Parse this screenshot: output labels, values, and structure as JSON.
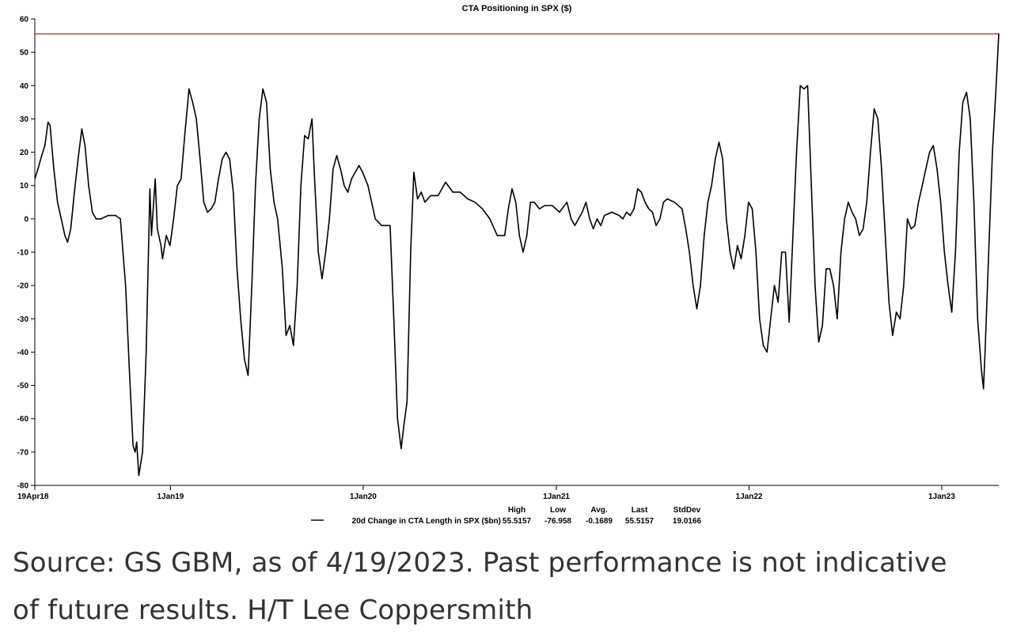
{
  "chart_data": {
    "type": "line",
    "title": "CTA Positioning in SPX ($)",
    "ylim": [
      -80,
      60
    ],
    "yticks": [
      60,
      50,
      40,
      30,
      20,
      10,
      0,
      -10,
      -20,
      -30,
      -40,
      -50,
      -60,
      -70,
      -80
    ],
    "xlim": [
      "2018-04-19",
      "2023-04-19"
    ],
    "xtick_labels": [
      {
        "date": "2018-04-19",
        "label": "19Apr18"
      },
      {
        "date": "2019-01-01",
        "label": "1Jan19"
      },
      {
        "date": "2020-01-01",
        "label": "1Jan20"
      },
      {
        "date": "2021-01-01",
        "label": "1Jan21"
      },
      {
        "date": "2022-01-01",
        "label": "1Jan22"
      },
      {
        "date": "2023-01-01",
        "label": "1Jan23"
      }
    ],
    "reference_line": {
      "value": 55.5157,
      "color": "#a0302a"
    },
    "series": [
      {
        "name": "20d Change in CTA Length in SPX ($bn)",
        "color": "#000000",
        "points": [
          [
            "2018-04-19",
            12
          ],
          [
            "2018-04-25",
            15
          ],
          [
            "2018-05-02",
            19
          ],
          [
            "2018-05-08",
            22
          ],
          [
            "2018-05-14",
            29
          ],
          [
            "2018-05-18",
            28
          ],
          [
            "2018-05-25",
            15
          ],
          [
            "2018-06-01",
            5
          ],
          [
            "2018-06-08",
            0
          ],
          [
            "2018-06-15",
            -5
          ],
          [
            "2018-06-20",
            -7
          ],
          [
            "2018-06-26",
            -3
          ],
          [
            "2018-07-03",
            8
          ],
          [
            "2018-07-10",
            18
          ],
          [
            "2018-07-17",
            27
          ],
          [
            "2018-07-23",
            22
          ],
          [
            "2018-07-30",
            10
          ],
          [
            "2018-08-06",
            2
          ],
          [
            "2018-08-13",
            0
          ],
          [
            "2018-08-22",
            0
          ],
          [
            "2018-09-05",
            1
          ],
          [
            "2018-09-19",
            1
          ],
          [
            "2018-09-28",
            0
          ],
          [
            "2018-10-08",
            -20
          ],
          [
            "2018-10-15",
            -45
          ],
          [
            "2018-10-22",
            -68
          ],
          [
            "2018-10-26",
            -70
          ],
          [
            "2018-10-29",
            -67
          ],
          [
            "2018-11-02",
            -77
          ],
          [
            "2018-11-09",
            -70
          ],
          [
            "2018-11-16",
            -40
          ],
          [
            "2018-11-23",
            9
          ],
          [
            "2018-11-26",
            -5
          ],
          [
            "2018-12-03",
            12
          ],
          [
            "2018-12-07",
            -3
          ],
          [
            "2018-12-14",
            -8
          ],
          [
            "2018-12-17",
            -12
          ],
          [
            "2018-12-24",
            -5
          ],
          [
            "2018-12-31",
            -8
          ],
          [
            "2019-01-07",
            0
          ],
          [
            "2019-01-14",
            10
          ],
          [
            "2019-01-21",
            12
          ],
          [
            "2019-01-28",
            25
          ],
          [
            "2019-02-05",
            39
          ],
          [
            "2019-02-12",
            35
          ],
          [
            "2019-02-19",
            30
          ],
          [
            "2019-02-26",
            18
          ],
          [
            "2019-03-05",
            5
          ],
          [
            "2019-03-12",
            2
          ],
          [
            "2019-03-19",
            3
          ],
          [
            "2019-03-26",
            5
          ],
          [
            "2019-04-02",
            12
          ],
          [
            "2019-04-09",
            18
          ],
          [
            "2019-04-16",
            20
          ],
          [
            "2019-04-23",
            18
          ],
          [
            "2019-04-30",
            8
          ],
          [
            "2019-05-07",
            -15
          ],
          [
            "2019-05-14",
            -30
          ],
          [
            "2019-05-21",
            -42
          ],
          [
            "2019-05-28",
            -47
          ],
          [
            "2019-06-04",
            -20
          ],
          [
            "2019-06-11",
            10
          ],
          [
            "2019-06-18",
            30
          ],
          [
            "2019-06-25",
            39
          ],
          [
            "2019-07-02",
            35
          ],
          [
            "2019-07-09",
            15
          ],
          [
            "2019-07-16",
            5
          ],
          [
            "2019-07-23",
            0
          ],
          [
            "2019-08-01",
            -15
          ],
          [
            "2019-08-08",
            -35
          ],
          [
            "2019-08-15",
            -32
          ],
          [
            "2019-08-22",
            -38
          ],
          [
            "2019-08-29",
            -20
          ],
          [
            "2019-09-05",
            10
          ],
          [
            "2019-09-12",
            25
          ],
          [
            "2019-09-19",
            24
          ],
          [
            "2019-09-26",
            30
          ],
          [
            "2019-10-01",
            12
          ],
          [
            "2019-10-08",
            -10
          ],
          [
            "2019-10-15",
            -18
          ],
          [
            "2019-10-22",
            -10
          ],
          [
            "2019-10-29",
            0
          ],
          [
            "2019-11-05",
            15
          ],
          [
            "2019-11-12",
            19
          ],
          [
            "2019-11-19",
            15
          ],
          [
            "2019-11-26",
            10
          ],
          [
            "2019-12-03",
            8
          ],
          [
            "2019-12-10",
            12
          ],
          [
            "2019-12-17",
            14
          ],
          [
            "2019-12-24",
            16
          ],
          [
            "2019-12-31",
            14
          ],
          [
            "2020-01-10",
            10
          ],
          [
            "2020-01-17",
            5
          ],
          [
            "2020-01-24",
            0
          ],
          [
            "2020-02-05",
            -2
          ],
          [
            "2020-02-14",
            -2
          ],
          [
            "2020-02-21",
            -2
          ],
          [
            "2020-02-28",
            -30
          ],
          [
            "2020-03-06",
            -60
          ],
          [
            "2020-03-13",
            -69
          ],
          [
            "2020-03-18",
            -62
          ],
          [
            "2020-03-24",
            -55
          ],
          [
            "2020-03-31",
            -10
          ],
          [
            "2020-04-06",
            14
          ],
          [
            "2020-04-13",
            6
          ],
          [
            "2020-04-20",
            8
          ],
          [
            "2020-04-27",
            5
          ],
          [
            "2020-05-08",
            7
          ],
          [
            "2020-05-22",
            7
          ],
          [
            "2020-06-05",
            11
          ],
          [
            "2020-06-19",
            8
          ],
          [
            "2020-07-03",
            8
          ],
          [
            "2020-07-17",
            6
          ],
          [
            "2020-07-31",
            5
          ],
          [
            "2020-08-14",
            3
          ],
          [
            "2020-08-28",
            0
          ],
          [
            "2020-09-11",
            -5
          ],
          [
            "2020-09-25",
            -5
          ],
          [
            "2020-10-02",
            3
          ],
          [
            "2020-10-09",
            9
          ],
          [
            "2020-10-16",
            5
          ],
          [
            "2020-10-23",
            -5
          ],
          [
            "2020-10-30",
            -10
          ],
          [
            "2020-11-06",
            -5
          ],
          [
            "2020-11-13",
            5
          ],
          [
            "2020-11-20",
            5
          ],
          [
            "2020-11-30",
            3
          ],
          [
            "2020-12-10",
            4
          ],
          [
            "2020-12-24",
            4
          ],
          [
            "2021-01-07",
            2
          ],
          [
            "2021-01-21",
            5
          ],
          [
            "2021-01-29",
            0
          ],
          [
            "2021-02-05",
            -2
          ],
          [
            "2021-02-12",
            0
          ],
          [
            "2021-02-19",
            2
          ],
          [
            "2021-02-26",
            5
          ],
          [
            "2021-03-05",
            0
          ],
          [
            "2021-03-12",
            -3
          ],
          [
            "2021-03-19",
            0
          ],
          [
            "2021-03-26",
            -2
          ],
          [
            "2021-04-02",
            1
          ],
          [
            "2021-04-16",
            2
          ],
          [
            "2021-04-30",
            1
          ],
          [
            "2021-05-07",
            0
          ],
          [
            "2021-05-14",
            2
          ],
          [
            "2021-05-21",
            1
          ],
          [
            "2021-05-28",
            3
          ],
          [
            "2021-06-04",
            9
          ],
          [
            "2021-06-11",
            8
          ],
          [
            "2021-06-18",
            5
          ],
          [
            "2021-06-25",
            3
          ],
          [
            "2021-07-02",
            2
          ],
          [
            "2021-07-09",
            -2
          ],
          [
            "2021-07-16",
            0
          ],
          [
            "2021-07-23",
            5
          ],
          [
            "2021-07-30",
            6
          ],
          [
            "2021-08-13",
            5
          ],
          [
            "2021-08-27",
            3
          ],
          [
            "2021-09-03",
            -3
          ],
          [
            "2021-09-10",
            -10
          ],
          [
            "2021-09-17",
            -20
          ],
          [
            "2021-09-24",
            -27
          ],
          [
            "2021-10-01",
            -20
          ],
          [
            "2021-10-08",
            -5
          ],
          [
            "2021-10-15",
            5
          ],
          [
            "2021-10-22",
            10
          ],
          [
            "2021-10-29",
            18
          ],
          [
            "2021-11-05",
            23
          ],
          [
            "2021-11-12",
            18
          ],
          [
            "2021-11-19",
            0
          ],
          [
            "2021-11-26",
            -10
          ],
          [
            "2021-12-03",
            -15
          ],
          [
            "2021-12-10",
            -8
          ],
          [
            "2021-12-17",
            -12
          ],
          [
            "2021-12-24",
            -5
          ],
          [
            "2021-12-31",
            5
          ],
          [
            "2022-01-07",
            3
          ],
          [
            "2022-01-14",
            -10
          ],
          [
            "2022-01-21",
            -30
          ],
          [
            "2022-01-28",
            -38
          ],
          [
            "2022-02-04",
            -40
          ],
          [
            "2022-02-11",
            -30
          ],
          [
            "2022-02-18",
            -20
          ],
          [
            "2022-02-25",
            -25
          ],
          [
            "2022-03-04",
            -10
          ],
          [
            "2022-03-11",
            -10
          ],
          [
            "2022-03-18",
            -31
          ],
          [
            "2022-03-25",
            -5
          ],
          [
            "2022-04-01",
            20
          ],
          [
            "2022-04-08",
            40
          ],
          [
            "2022-04-15",
            39
          ],
          [
            "2022-04-22",
            40
          ],
          [
            "2022-04-29",
            10
          ],
          [
            "2022-05-06",
            -20
          ],
          [
            "2022-05-13",
            -37
          ],
          [
            "2022-05-20",
            -32
          ],
          [
            "2022-05-27",
            -15
          ],
          [
            "2022-06-03",
            -15
          ],
          [
            "2022-06-10",
            -20
          ],
          [
            "2022-06-17",
            -30
          ],
          [
            "2022-06-24",
            -10
          ],
          [
            "2022-07-01",
            0
          ],
          [
            "2022-07-08",
            5
          ],
          [
            "2022-07-15",
            2
          ],
          [
            "2022-07-22",
            0
          ],
          [
            "2022-07-29",
            -5
          ],
          [
            "2022-08-05",
            -3
          ],
          [
            "2022-08-12",
            5
          ],
          [
            "2022-08-19",
            20
          ],
          [
            "2022-08-26",
            33
          ],
          [
            "2022-09-02",
            30
          ],
          [
            "2022-09-09",
            15
          ],
          [
            "2022-09-16",
            -5
          ],
          [
            "2022-09-23",
            -25
          ],
          [
            "2022-09-30",
            -35
          ],
          [
            "2022-10-07",
            -28
          ],
          [
            "2022-10-14",
            -30
          ],
          [
            "2022-10-21",
            -20
          ],
          [
            "2022-10-28",
            0
          ],
          [
            "2022-11-04",
            -3
          ],
          [
            "2022-11-11",
            -2
          ],
          [
            "2022-11-18",
            5
          ],
          [
            "2022-11-25",
            10
          ],
          [
            "2022-12-02",
            15
          ],
          [
            "2022-12-09",
            20
          ],
          [
            "2022-12-16",
            22
          ],
          [
            "2022-12-23",
            15
          ],
          [
            "2022-12-30",
            5
          ],
          [
            "2023-01-06",
            -10
          ],
          [
            "2023-01-13",
            -20
          ],
          [
            "2023-01-20",
            -28
          ],
          [
            "2023-01-27",
            -10
          ],
          [
            "2023-02-03",
            20
          ],
          [
            "2023-02-10",
            35
          ],
          [
            "2023-02-17",
            38
          ],
          [
            "2023-02-24",
            30
          ],
          [
            "2023-03-03",
            5
          ],
          [
            "2023-03-10",
            -30
          ],
          [
            "2023-03-17",
            -45
          ],
          [
            "2023-03-21",
            -51
          ],
          [
            "2023-03-24",
            -40
          ],
          [
            "2023-03-31",
            -10
          ],
          [
            "2023-04-07",
            20
          ],
          [
            "2023-04-14",
            40
          ],
          [
            "2023-04-19",
            55.5157
          ]
        ]
      }
    ],
    "legend": {
      "label": "20d Change in CTA Length in SPX ($bn)",
      "stats_headers": [
        "High",
        "Low",
        "Avg.",
        "Last",
        "StdDev"
      ],
      "stats_values": [
        "55.5157",
        "-76.958",
        "-0.1689",
        "55.5157",
        "19.0166"
      ]
    },
    "grid": false
  },
  "caption": {
    "line1": "Source: GS GBM, as of 4/19/2023. Past performance is not indicative",
    "line2": "of future results. H/T Lee Coppersmith"
  }
}
